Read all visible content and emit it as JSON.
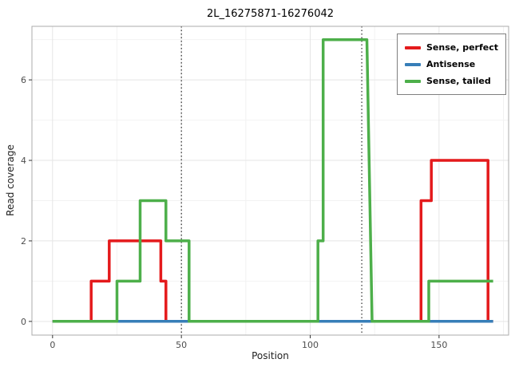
{
  "chart_data": {
    "type": "line",
    "step": true,
    "title": "2L_16275871-16276042",
    "xlabel": "Position",
    "ylabel": "Read coverage",
    "xlim": [
      -8,
      177
    ],
    "ylim": [
      -0.34,
      7.33
    ],
    "xticks": [
      0,
      50,
      100,
      150
    ],
    "yticks": [
      0,
      2,
      4,
      6
    ],
    "grid": true,
    "legend_position": "top-right",
    "vlines": {
      "positions": [
        50,
        120
      ],
      "style": "dotted",
      "color": "#000000"
    },
    "series": [
      {
        "name": "Sense, perfect",
        "color": "#e41a1c",
        "points": [
          [
            0,
            0
          ],
          [
            15,
            0
          ],
          [
            15,
            1
          ],
          [
            22,
            1
          ],
          [
            22,
            2
          ],
          [
            42,
            2
          ],
          [
            42,
            1
          ],
          [
            44,
            1
          ],
          [
            44,
            0
          ],
          [
            143,
            0
          ],
          [
            143,
            3
          ],
          [
            147,
            3
          ],
          [
            147,
            4
          ],
          [
            169,
            4
          ],
          [
            169,
            0
          ],
          [
            171,
            0
          ]
        ]
      },
      {
        "name": "Antisense",
        "color": "#377eb8",
        "points": [
          [
            0,
            0
          ],
          [
            171,
            0
          ]
        ]
      },
      {
        "name": "Sense, tailed",
        "color": "#4daf4a",
        "points": [
          [
            0,
            0
          ],
          [
            25,
            0
          ],
          [
            25,
            1
          ],
          [
            34,
            1
          ],
          [
            34,
            3
          ],
          [
            44,
            3
          ],
          [
            44,
            2
          ],
          [
            53,
            2
          ],
          [
            53,
            0
          ],
          [
            103,
            0
          ],
          [
            103,
            2
          ],
          [
            105,
            2
          ],
          [
            105,
            7
          ],
          [
            122,
            7
          ],
          [
            124,
            0
          ],
          [
            146,
            0
          ],
          [
            146,
            1
          ],
          [
            171,
            1
          ]
        ]
      }
    ]
  }
}
